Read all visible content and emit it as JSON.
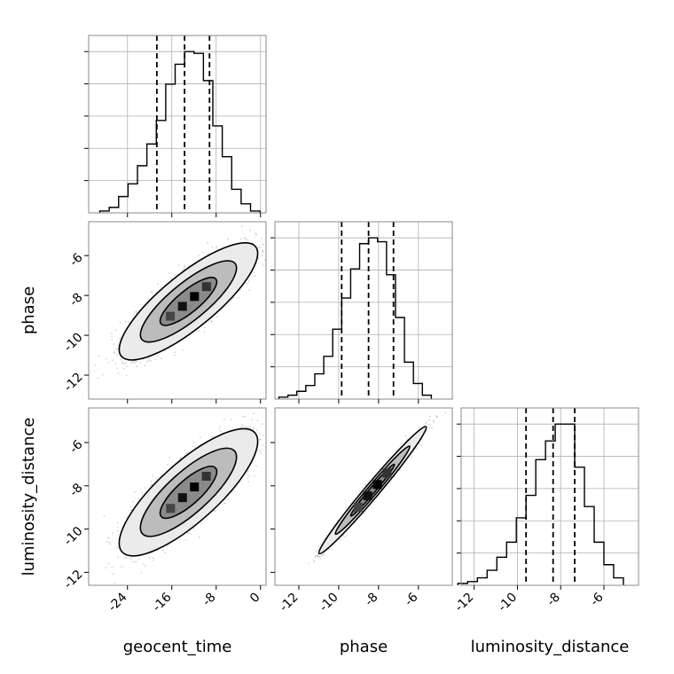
{
  "chart_data": {
    "type": "corner",
    "parameters": [
      "geocent_time",
      "phase",
      "luminosity_distance"
    ],
    "axis_labels": {
      "x": [
        "geocent_time",
        "phase",
        "luminosity_distance"
      ],
      "y": [
        "",
        "phase",
        "luminosity_distance"
      ]
    },
    "ranges": {
      "geocent_time": [
        -31,
        1
      ],
      "phase": [
        -13.2,
        -4.3
      ],
      "luminosity_distance": [
        -12.6,
        -4.4
      ]
    },
    "ticks": {
      "geocent_time": [
        "-24",
        "-16",
        "-8",
        "0"
      ],
      "phase": [
        "-12",
        "-10",
        "-8",
        "-6"
      ],
      "luminosity_distance": [
        "-12",
        "-10",
        "-8",
        "-6"
      ]
    },
    "quantiles": {
      "geocent_time": [
        -18.7,
        -13.7,
        -9.2
      ],
      "phase": [
        -9.85,
        -8.5,
        -7.25
      ],
      "luminosity_distance": [
        -9.6,
        -8.35,
        -7.35
      ]
    },
    "histograms": {
      "geocent_time": {
        "edges": [
          -29,
          -27.3,
          -25.6,
          -23.9,
          -22.2,
          -20.5,
          -18.8,
          -17.1,
          -15.4,
          -13.7,
          -12,
          -10.3,
          -8.6,
          -6.9,
          -5.2,
          -3.5,
          -1.8,
          -0.1
        ],
        "counts": [
          1,
          3,
          9,
          16,
          26,
          38,
          51,
          71,
          82,
          89,
          88,
          73,
          48,
          31,
          13,
          5,
          1
        ]
      },
      "phase": {
        "edges": [
          -13.0,
          -12.55,
          -12.1,
          -11.65,
          -11.2,
          -10.75,
          -10.3,
          -9.85,
          -9.4,
          -8.95,
          -8.5,
          -8.05,
          -7.6,
          -7.15,
          -6.7,
          -6.25,
          -5.8,
          -5.35
        ],
        "counts": [
          1,
          2,
          4,
          7,
          13,
          22,
          36,
          52,
          67,
          80,
          83,
          81,
          64,
          42,
          19,
          8,
          2
        ]
      },
      "luminosity_distance": {
        "edges": [
          -12.75,
          -12.3,
          -11.85,
          -11.4,
          -10.95,
          -10.5,
          -10.05,
          -9.6,
          -9.15,
          -8.7,
          -8.25,
          -7.8,
          -7.35,
          -6.9,
          -6.45,
          -6.0,
          -5.55,
          -5.1
        ],
        "counts": [
          1,
          2,
          4,
          8,
          15,
          23,
          36,
          48,
          67,
          77,
          86,
          86,
          63,
          42,
          23,
          11,
          4
        ]
      }
    },
    "joint_peaks": {
      "phase_vs_geocent_time": [
        -13,
        -8.3
      ],
      "luminosity_distance_vs_geocent_time": [
        -13,
        -8.3
      ],
      "luminosity_distance_vs_phase": [
        -8.3,
        -8.2
      ]
    },
    "contour_levels": [
      "inner",
      "middle",
      "outer"
    ],
    "grid": true,
    "colors": {
      "line": "#000000",
      "grid": "#b0b0b0",
      "scatter": "#888888"
    }
  }
}
